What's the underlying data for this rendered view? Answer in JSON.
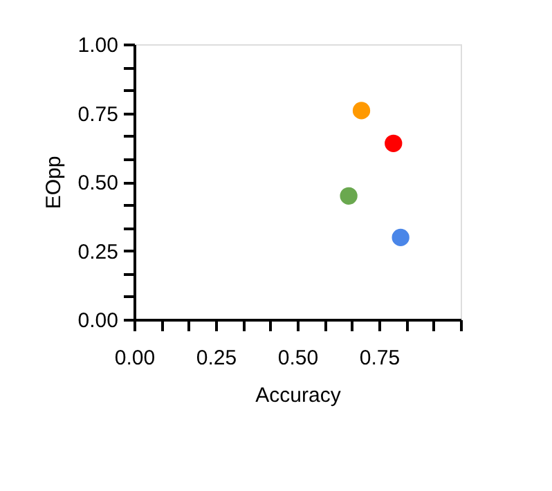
{
  "chart_data": {
    "type": "scatter",
    "xlabel": "Accuracy",
    "ylabel": "EOpp",
    "x": [
      0.696,
      0.794,
      0.657,
      0.816
    ],
    "values": [
      0.759,
      0.64,
      0.449,
      0.298
    ],
    "colors": [
      "#ff9900",
      "#ff0000",
      "#6aa84f",
      "#4a86e8"
    ],
    "marker": "circle",
    "grid": false,
    "legend": false,
    "xlim": [
      0,
      1
    ],
    "ylim": [
      0,
      1
    ],
    "xticks": [
      {
        "value": 0,
        "label": "0.00"
      },
      {
        "value": 0.0833,
        "label": null
      },
      {
        "value": 0.1667,
        "label": null
      },
      {
        "value": 0.25,
        "label": "0.25"
      },
      {
        "value": 0.3333,
        "label": null
      },
      {
        "value": 0.4167,
        "label": null
      },
      {
        "value": 0.5,
        "label": "0.50"
      },
      {
        "value": 0.5833,
        "label": null
      },
      {
        "value": 0.6667,
        "label": null
      },
      {
        "value": 0.75,
        "label": "0.75"
      },
      {
        "value": 0.8333,
        "label": null
      },
      {
        "value": 0.9167,
        "label": null
      },
      {
        "value": 1,
        "label": null
      }
    ],
    "yticks": [
      {
        "value": 0,
        "label": "0.00"
      },
      {
        "value": 0.0833,
        "label": null
      },
      {
        "value": 0.1667,
        "label": null
      },
      {
        "value": 0.25,
        "label": "0.25"
      },
      {
        "value": 0.3333,
        "label": null
      },
      {
        "value": 0.4167,
        "label": null
      },
      {
        "value": 0.5,
        "label": "0.50"
      },
      {
        "value": 0.5833,
        "label": null
      },
      {
        "value": 0.6667,
        "label": null
      },
      {
        "value": 0.75,
        "label": "0.75"
      },
      {
        "value": 0.8333,
        "label": null
      },
      {
        "value": 0.9167,
        "label": null
      },
      {
        "value": 1,
        "label": "1.00"
      }
    ]
  }
}
